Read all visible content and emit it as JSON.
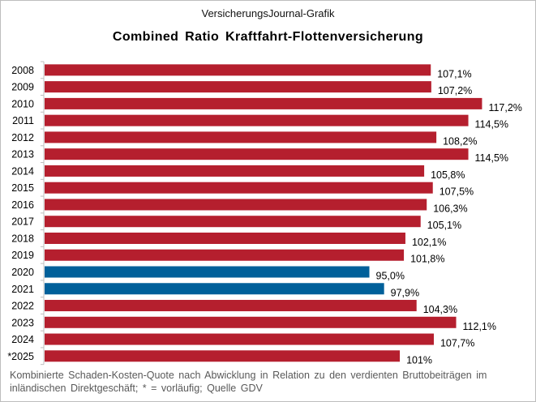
{
  "header": {
    "brand": "VersicherungsJournal-Grafik"
  },
  "chart_data": {
    "type": "bar",
    "orientation": "horizontal",
    "title": "Combined  Ratio Kraftfahrt-Flottenversicherung",
    "categories": [
      "2008",
      "2009",
      "2010",
      "2011",
      "2012",
      "2013",
      "2014",
      "2015",
      "2016",
      "2017",
      "2018",
      "2019",
      "2020",
      "2021",
      "2022",
      "2023",
      "2024",
      "*2025"
    ],
    "values": [
      107.1,
      107.2,
      117.2,
      114.5,
      108.2,
      114.5,
      105.8,
      107.5,
      106.3,
      105.1,
      102.1,
      101.8,
      95.0,
      97.9,
      104.3,
      112.1,
      107.7,
      101
    ],
    "data_labels": [
      "107,1%",
      "107,2%",
      "117,2%",
      "114,5%",
      "108,2%",
      "114,5%",
      "105,8%",
      "107,5%",
      "106,3%",
      "105,1%",
      "102,1%",
      "101,8%",
      "95,0%",
      "97,9%",
      "104,3%",
      "112,1%",
      "107,7%",
      "101%"
    ],
    "xlim": [
      31,
      124
    ],
    "grid": false,
    "legend": "none",
    "colors": {
      "default": "#b51f2e",
      "highlight": "#00609a"
    },
    "highlight_categories": [
      "2020",
      "2021"
    ],
    "xlabel": "",
    "ylabel": ""
  },
  "footer": {
    "note": "Kombinierte Schaden-Kosten-Quote  nach Abwicklung in Relation zu den verdienten  Bruttobeiträgen  im inländischen Direktgeschäft; * = vorläufig;  Quelle GDV"
  }
}
